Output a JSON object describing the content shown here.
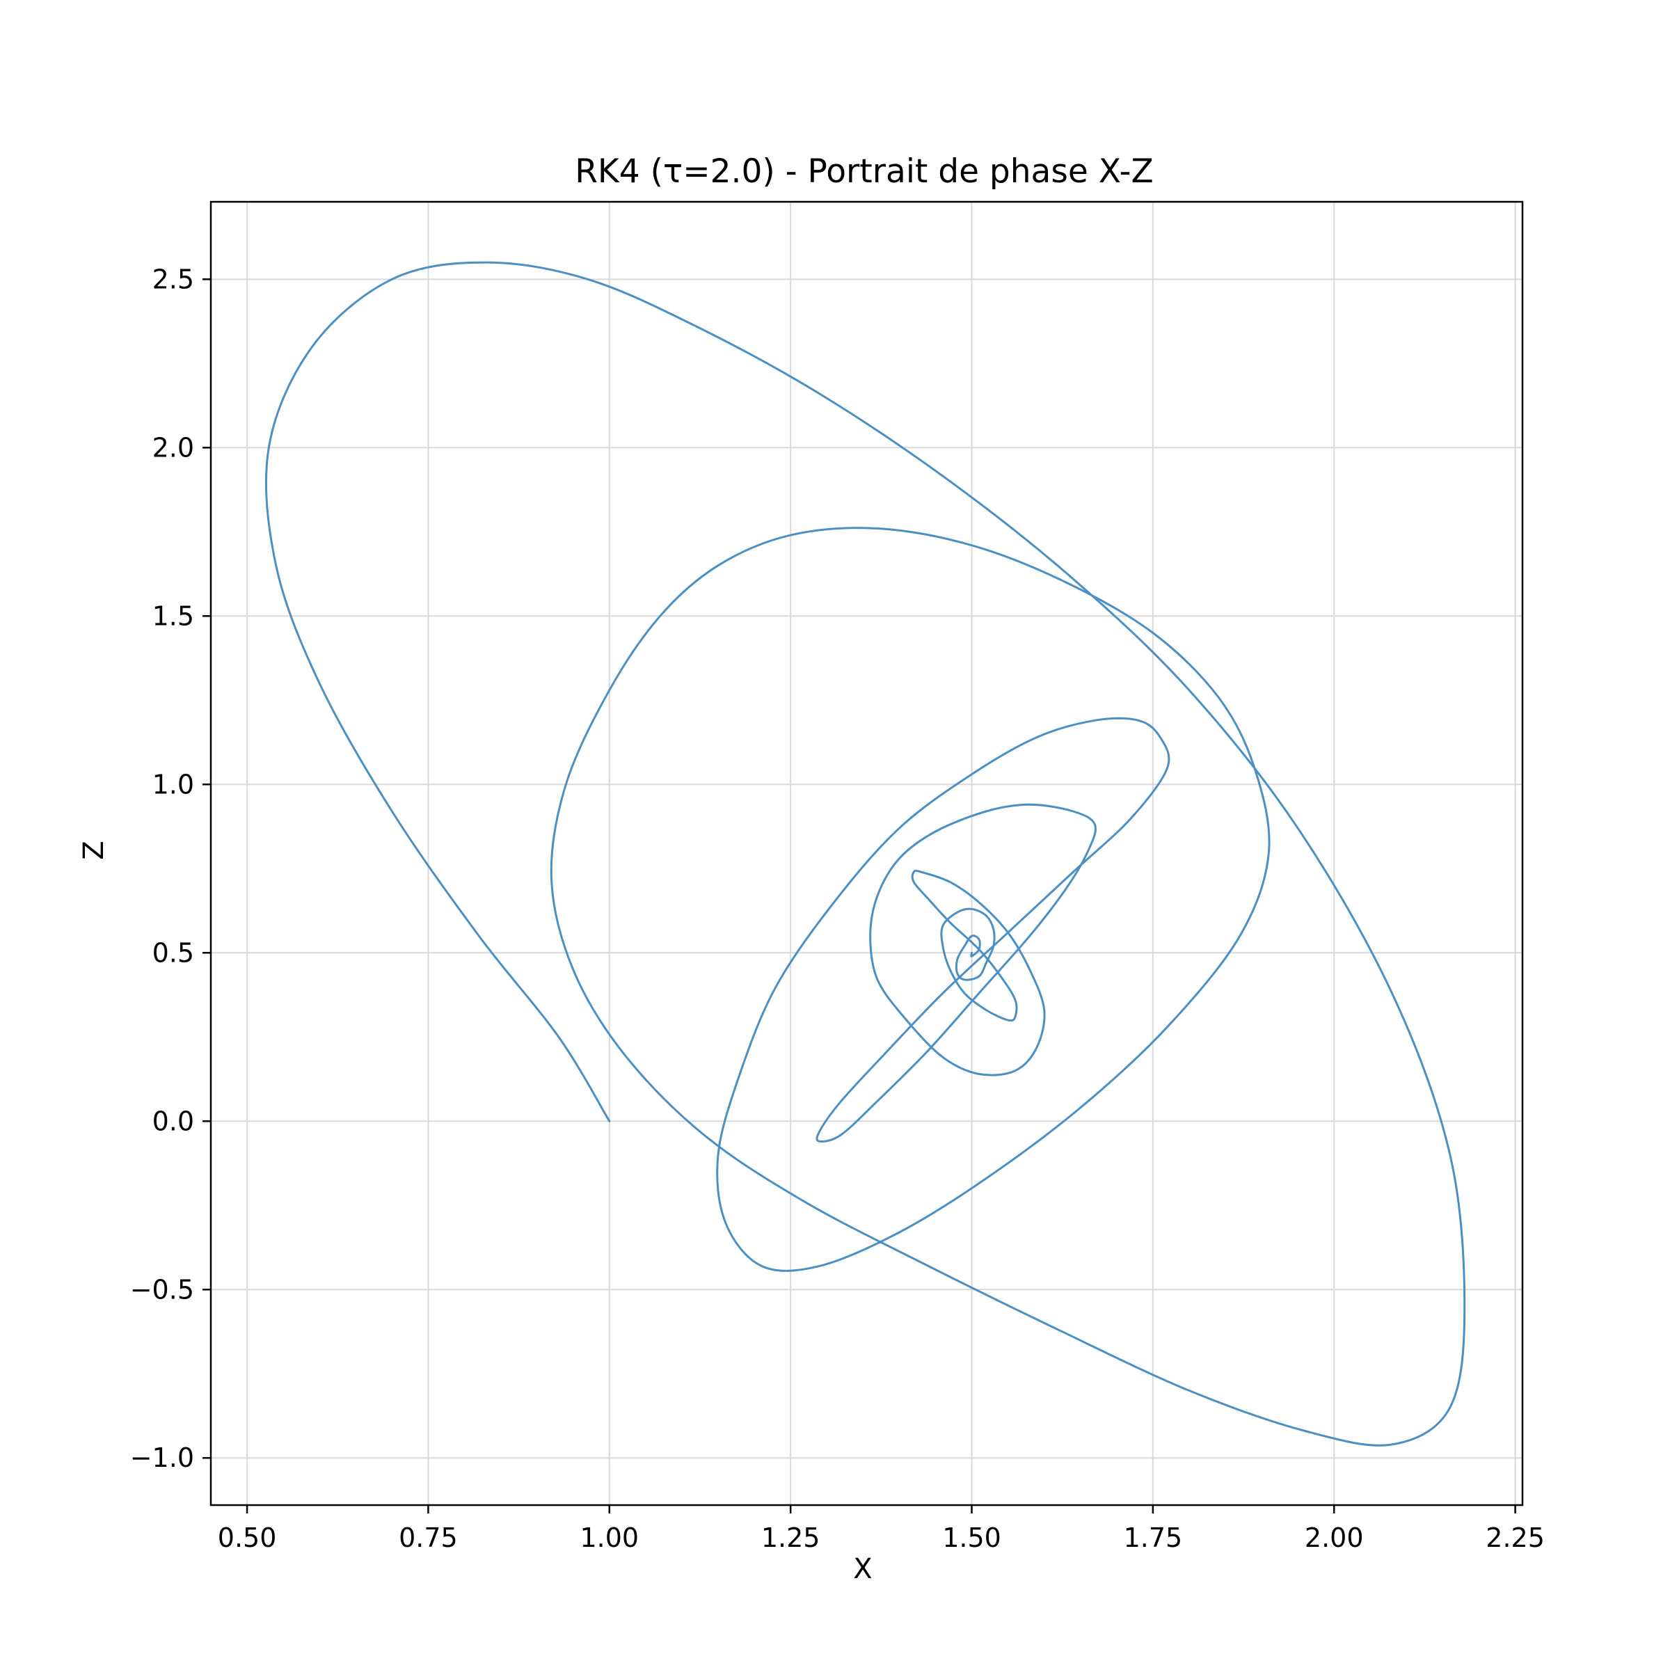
{
  "chart_data": {
    "type": "line",
    "title": "RK4 (τ=2.0) - Portrait de phase X-Z",
    "xlabel": "X",
    "ylabel": "Z",
    "xlim": [
      0.45,
      2.26
    ],
    "ylim": [
      -1.14,
      2.73
    ],
    "grid": true,
    "line_color": "#4a90c4",
    "x_ticks": [
      {
        "value": 0.5,
        "label": "0.50"
      },
      {
        "value": 0.75,
        "label": "0.75"
      },
      {
        "value": 1.0,
        "label": "1.00"
      },
      {
        "value": 1.25,
        "label": "1.25"
      },
      {
        "value": 1.5,
        "label": "1.50"
      },
      {
        "value": 1.75,
        "label": "1.75"
      },
      {
        "value": 2.0,
        "label": "2.00"
      },
      {
        "value": 2.25,
        "label": "2.25"
      }
    ],
    "y_ticks": [
      {
        "value": -1.0,
        "label": "−1.0"
      },
      {
        "value": -0.5,
        "label": "−0.5"
      },
      {
        "value": 0.0,
        "label": "0.0"
      },
      {
        "value": 0.5,
        "label": "0.5"
      },
      {
        "value": 1.0,
        "label": "1.0"
      },
      {
        "value": 1.5,
        "label": "1.5"
      },
      {
        "value": 2.0,
        "label": "2.0"
      },
      {
        "value": 2.5,
        "label": "2.5"
      }
    ],
    "series": [
      {
        "x": [
          1.0,
          0.93,
          0.82,
          0.7,
          0.6,
          0.54,
          0.53,
          0.59,
          0.7,
          0.83,
          0.97,
          1.12,
          1.29,
          1.47,
          1.64,
          1.8,
          1.95,
          2.08,
          2.16,
          2.18,
          2.16,
          2.08,
          1.96,
          1.8,
          1.62,
          1.44,
          1.27,
          1.13,
          1.02,
          0.95,
          0.92,
          0.94,
          1.0,
          1.07,
          1.15,
          1.25,
          1.37,
          1.5,
          1.63,
          1.75,
          1.84,
          1.89,
          1.91,
          1.87,
          1.77,
          1.65,
          1.52,
          1.4,
          1.29,
          1.21,
          1.16,
          1.15,
          1.18,
          1.23,
          1.31,
          1.4,
          1.5,
          1.59,
          1.67,
          1.73,
          1.76,
          1.77,
          1.72,
          1.64,
          1.55,
          1.46,
          1.38,
          1.32,
          1.29,
          1.29,
          1.32,
          1.37,
          1.44,
          1.51,
          1.58,
          1.63,
          1.66,
          1.67,
          1.64,
          1.58,
          1.52,
          1.45,
          1.4,
          1.37,
          1.36,
          1.37,
          1.41,
          1.46,
          1.51,
          1.56,
          1.59,
          1.6,
          1.58,
          1.55,
          1.51,
          1.47,
          1.43,
          1.42,
          1.42,
          1.44,
          1.47,
          1.51,
          1.54,
          1.56,
          1.56,
          1.55,
          1.52,
          1.49,
          1.47,
          1.46,
          1.46,
          1.48,
          1.5,
          1.52,
          1.53,
          1.53,
          1.52,
          1.51,
          1.49,
          1.48,
          1.48,
          1.49,
          1.5,
          1.51,
          1.51,
          1.5,
          1.5
        ],
        "y": [
          0.0,
          0.25,
          0.55,
          0.92,
          1.3,
          1.65,
          2.0,
          2.3,
          2.5,
          2.55,
          2.5,
          2.36,
          2.16,
          1.9,
          1.61,
          1.28,
          0.87,
          0.38,
          -0.1,
          -0.55,
          -0.85,
          -0.96,
          -0.92,
          -0.8,
          -0.62,
          -0.43,
          -0.24,
          -0.04,
          0.2,
          0.45,
          0.72,
          1.0,
          1.28,
          1.5,
          1.65,
          1.74,
          1.76,
          1.71,
          1.6,
          1.45,
          1.26,
          1.05,
          0.8,
          0.55,
          0.28,
          0.04,
          -0.17,
          -0.33,
          -0.43,
          -0.43,
          -0.3,
          -0.1,
          0.14,
          0.4,
          0.65,
          0.87,
          1.03,
          1.14,
          1.19,
          1.19,
          1.14,
          1.05,
          0.9,
          0.74,
          0.56,
          0.38,
          0.2,
          0.06,
          -0.03,
          -0.06,
          -0.04,
          0.06,
          0.21,
          0.38,
          0.55,
          0.69,
          0.8,
          0.88,
          0.92,
          0.94,
          0.92,
          0.86,
          0.78,
          0.67,
          0.55,
          0.42,
          0.3,
          0.19,
          0.14,
          0.15,
          0.22,
          0.33,
          0.45,
          0.56,
          0.65,
          0.71,
          0.74,
          0.74,
          0.71,
          0.66,
          0.59,
          0.51,
          0.43,
          0.36,
          0.31,
          0.3,
          0.33,
          0.38,
          0.45,
          0.52,
          0.58,
          0.62,
          0.63,
          0.61,
          0.57,
          0.52,
          0.47,
          0.43,
          0.42,
          0.44,
          0.48,
          0.52,
          0.55,
          0.54,
          0.51,
          0.49,
          0.5
        ]
      }
    ]
  }
}
